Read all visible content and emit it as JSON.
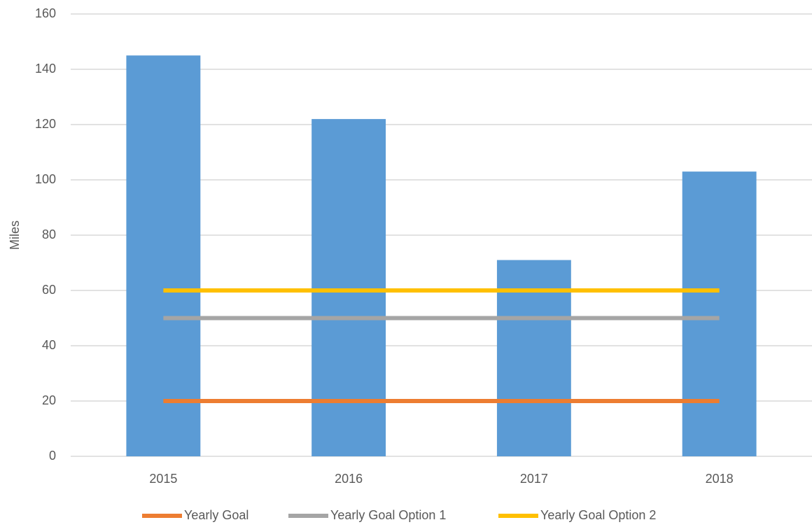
{
  "chart_data": {
    "type": "bar",
    "ylabel": "Miles",
    "categories": [
      "2015",
      "2016",
      "2017",
      "2018"
    ],
    "values": [
      145,
      122,
      71,
      103
    ],
    "color": "#5b9bd5",
    "series": [
      {
        "name": "Yearly Goal",
        "color": "#ed7d31",
        "values": [
          20,
          20,
          20,
          20
        ]
      },
      {
        "name": "Yearly Goal Option 1",
        "color": "#a5a5a5",
        "values": [
          50,
          50,
          50,
          50
        ]
      },
      {
        "name": "Yearly Goal Option 2",
        "color": "#ffc000",
        "values": [
          60,
          60,
          60,
          60
        ]
      }
    ],
    "ylim": [
      0,
      160
    ],
    "yticks": [
      0,
      20,
      40,
      60,
      80,
      100,
      120,
      140,
      160
    ],
    "grid": true,
    "legend": "bottom"
  }
}
